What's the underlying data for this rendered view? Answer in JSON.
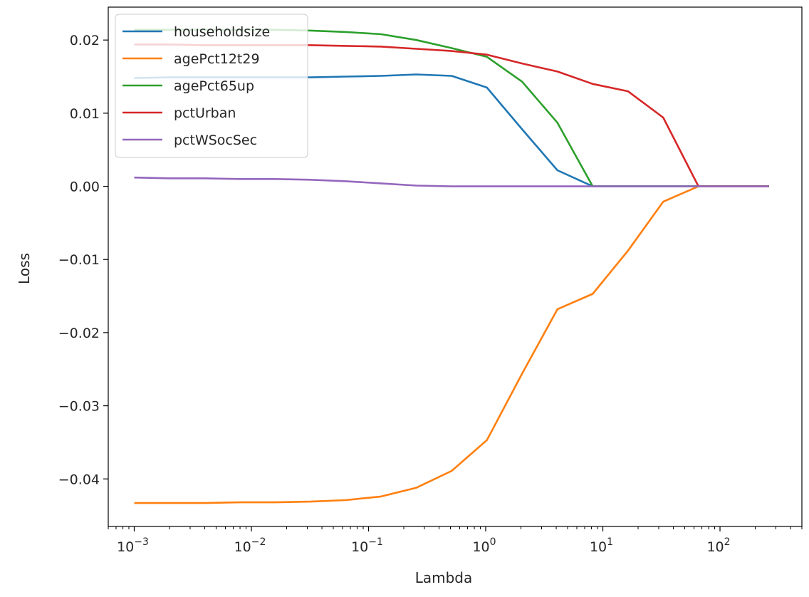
{
  "chart_data": {
    "type": "line",
    "title": "",
    "xlabel": "Lambda",
    "ylabel": "Loss",
    "x_scale": "log",
    "xlim": [
      0.0006,
      500
    ],
    "ylim": [
      -0.0465,
      0.0245
    ],
    "grid": false,
    "legend_position": "top-left",
    "x_ticks": [
      {
        "value": 0.001,
        "mantissa": "10",
        "exp": "−3"
      },
      {
        "value": 0.01,
        "mantissa": "10",
        "exp": "−2"
      },
      {
        "value": 0.1,
        "mantissa": "10",
        "exp": "−1"
      },
      {
        "value": 1,
        "mantissa": "10",
        "exp": "0"
      },
      {
        "value": 10,
        "mantissa": "10",
        "exp": "1"
      },
      {
        "value": 100,
        "mantissa": "10",
        "exp": "2"
      }
    ],
    "y_ticks": [
      {
        "value": 0.02,
        "label": "0.02"
      },
      {
        "value": 0.01,
        "label": "0.01"
      },
      {
        "value": 0.0,
        "label": "0.00"
      },
      {
        "value": -0.01,
        "label": "−0.01"
      },
      {
        "value": -0.02,
        "label": "−0.02"
      },
      {
        "value": -0.03,
        "label": "−0.03"
      },
      {
        "value": -0.04,
        "label": "−0.04"
      }
    ],
    "x": [
      0.001,
      0.002,
      0.004,
      0.008,
      0.016,
      0.032,
      0.064,
      0.128,
      0.256,
      0.512,
      1.024,
      2.048,
      4.096,
      8.192,
      16.384,
      32.768,
      65.536,
      131.072,
      262.144
    ],
    "series": [
      {
        "name": "householdsize",
        "color": "#1f77b4",
        "values": [
          0.0148,
          0.0149,
          0.0149,
          0.0149,
          0.0149,
          0.0149,
          0.015,
          0.0151,
          0.0153,
          0.0151,
          0.0135,
          0.0078,
          0.0022,
          0.0,
          0.0,
          0.0,
          0.0,
          0.0,
          0.0
        ]
      },
      {
        "name": "agePct12t29",
        "color": "#ff7f0e",
        "values": [
          -0.0433,
          -0.0433,
          -0.0433,
          -0.0432,
          -0.0432,
          -0.0431,
          -0.0429,
          -0.0424,
          -0.0412,
          -0.0389,
          -0.0347,
          -0.0256,
          -0.0168,
          -0.0147,
          -0.0088,
          -0.0021,
          0.0,
          0.0,
          0.0
        ]
      },
      {
        "name": "agePct65up",
        "color": "#2ca02c",
        "values": [
          0.0214,
          0.0214,
          0.0214,
          0.0214,
          0.0214,
          0.0213,
          0.0211,
          0.0208,
          0.02,
          0.0189,
          0.0177,
          0.0143,
          0.0087,
          0.0,
          0.0,
          0.0,
          0.0,
          0.0,
          0.0
        ]
      },
      {
        "name": "pctUrban",
        "color": "#d62728",
        "values": [
          0.0194,
          0.0194,
          0.0193,
          0.0193,
          0.0193,
          0.0193,
          0.0192,
          0.0191,
          0.0188,
          0.0185,
          0.018,
          0.0168,
          0.0157,
          0.014,
          0.013,
          0.0094,
          0.0,
          0.0,
          0.0
        ]
      },
      {
        "name": "pctWSocSec",
        "color": "#9467bd",
        "values": [
          0.0012,
          0.0011,
          0.0011,
          0.001,
          0.001,
          0.0009,
          0.0007,
          0.0004,
          0.0001,
          0.0,
          0.0,
          0.0,
          0.0,
          0.0,
          0.0,
          0.0,
          0.0,
          0.0,
          0.0
        ]
      }
    ]
  }
}
